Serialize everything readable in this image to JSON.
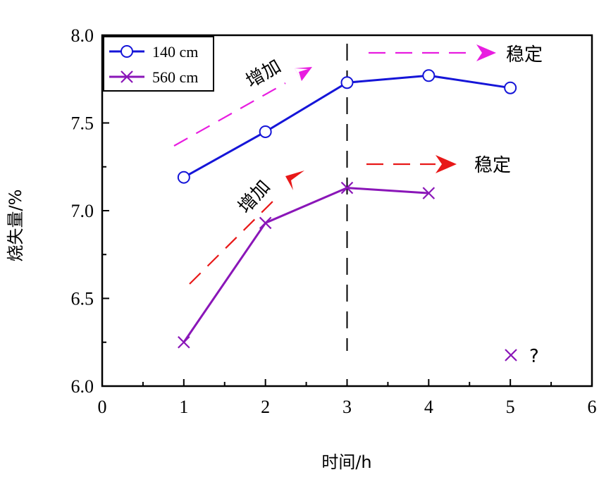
{
  "chart_data": {
    "type": "line",
    "xlabel": "时间/h",
    "ylabel": "烧失量/%",
    "xlim": [
      0,
      6
    ],
    "ylim": [
      6.0,
      8.0
    ],
    "xticks": [
      "0",
      "1",
      "2",
      "3",
      "4",
      "5",
      "6"
    ],
    "yticks": [
      "6.0",
      "6.5",
      "7.0",
      "7.5",
      "8.0"
    ],
    "legend_position": "top-left",
    "grid": false,
    "series": [
      {
        "name": "140 cm",
        "color": "#1515d8",
        "marker": "circle",
        "x": [
          1,
          2,
          3,
          4,
          5
        ],
        "y": [
          7.19,
          7.45,
          7.73,
          7.77,
          7.7
        ]
      },
      {
        "name": "560 cm",
        "color": "#8a16b8",
        "marker": "x",
        "x": [
          1,
          2,
          3,
          4
        ],
        "y": [
          6.25,
          6.93,
          7.13,
          7.1
        ]
      }
    ],
    "vertical_line_x": 3,
    "annotations": {
      "increase_label": "增加",
      "stable_label": "稳定",
      "question_marker_label": "?",
      "upper_color": "#e81de0",
      "lower_color": "#e81818"
    }
  }
}
